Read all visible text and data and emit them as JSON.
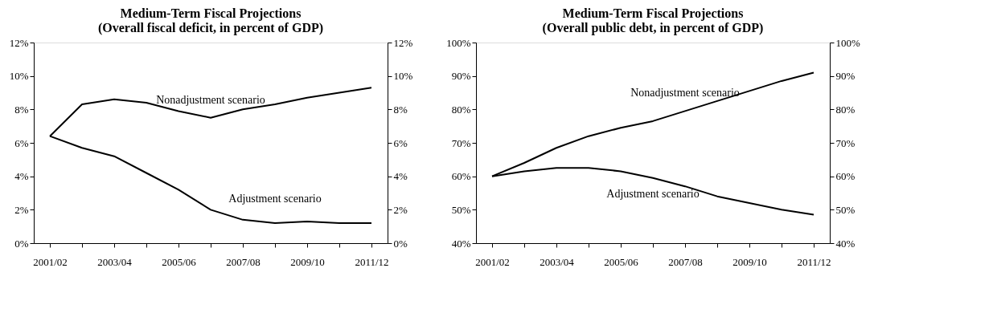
{
  "chart_data": [
    {
      "type": "line",
      "title": "Medium-Term Fiscal Projections\n(Overall fiscal deficit, in percent of GDP)",
      "categories": [
        "2001/02",
        null,
        "2003/04",
        null,
        "2005/06",
        null,
        "2007/08",
        null,
        "2009/10",
        null,
        "2011/12"
      ],
      "series": [
        {
          "name": "Nonadjustment scenario",
          "color": "#000000",
          "values": [
            6.4,
            8.3,
            8.6,
            8.4,
            7.9,
            7.5,
            8.0,
            8.3,
            8.7,
            9.0,
            9.3
          ]
        },
        {
          "name": "Adjustment scenario",
          "color": "#000000",
          "values": [
            6.4,
            5.7,
            5.2,
            4.2,
            3.2,
            2.0,
            1.4,
            1.2,
            1.3,
            1.2,
            1.2
          ]
        }
      ],
      "ylim": [
        0,
        12
      ],
      "yticks": [
        {
          "value": 0,
          "label": "0%"
        },
        {
          "value": 2,
          "label": "2%"
        },
        {
          "value": 4,
          "label": "4%"
        },
        {
          "value": 6,
          "label": "6%"
        },
        {
          "value": 8,
          "label": "8%"
        },
        {
          "value": 10,
          "label": "10%"
        },
        {
          "value": 12,
          "label": "12%"
        }
      ],
      "y2lim": [
        0,
        12
      ],
      "y2ticks": [
        {
          "value": 0,
          "label": "0%"
        },
        {
          "value": 2,
          "label": "2%"
        },
        {
          "value": 4,
          "label": "4%"
        },
        {
          "value": 6,
          "label": "6%"
        },
        {
          "value": 8,
          "label": "8%"
        },
        {
          "value": 10,
          "label": "10%"
        },
        {
          "value": 12,
          "label": "12%"
        }
      ],
      "grid": false,
      "marker": "none",
      "line_style": "solid"
    },
    {
      "type": "line",
      "title": "Medium-Term Fiscal Projections\n(Overall public debt, in percent of GDP)",
      "categories": [
        "2001/02",
        null,
        "2003/04",
        null,
        "2005/06",
        null,
        "2007/08",
        null,
        "2009/10",
        null,
        "2011/12"
      ],
      "series": [
        {
          "name": "Nonadjustment scenario",
          "color": "#000000",
          "values": [
            60,
            64,
            68.5,
            72,
            74.5,
            76.5,
            79.5,
            82.5,
            85.5,
            88.5,
            91
          ]
        },
        {
          "name": "Adjustment scenario",
          "color": "#000000",
          "values": [
            60,
            61.5,
            62.5,
            62.5,
            61.5,
            59.5,
            57,
            54,
            52,
            50,
            48.5
          ]
        }
      ],
      "ylim": [
        40,
        100
      ],
      "yticks": [
        {
          "value": 40,
          "label": "40%"
        },
        {
          "value": 50,
          "label": "50%"
        },
        {
          "value": 60,
          "label": "60%"
        },
        {
          "value": 70,
          "label": "70%"
        },
        {
          "value": 80,
          "label": "80%"
        },
        {
          "value": 90,
          "label": "90%"
        },
        {
          "value": 100,
          "label": "100%"
        }
      ],
      "y2lim": [
        40,
        100
      ],
      "y2ticks": [
        {
          "value": 40,
          "label": "40%"
        },
        {
          "value": 50,
          "label": "50%"
        },
        {
          "value": 60,
          "label": "60%"
        },
        {
          "value": 70,
          "label": "70%"
        },
        {
          "value": 80,
          "label": "80%"
        },
        {
          "value": 90,
          "label": "90%"
        },
        {
          "value": 100,
          "label": "100%"
        }
      ],
      "grid": false,
      "marker": "none",
      "line_style": "solid"
    }
  ]
}
